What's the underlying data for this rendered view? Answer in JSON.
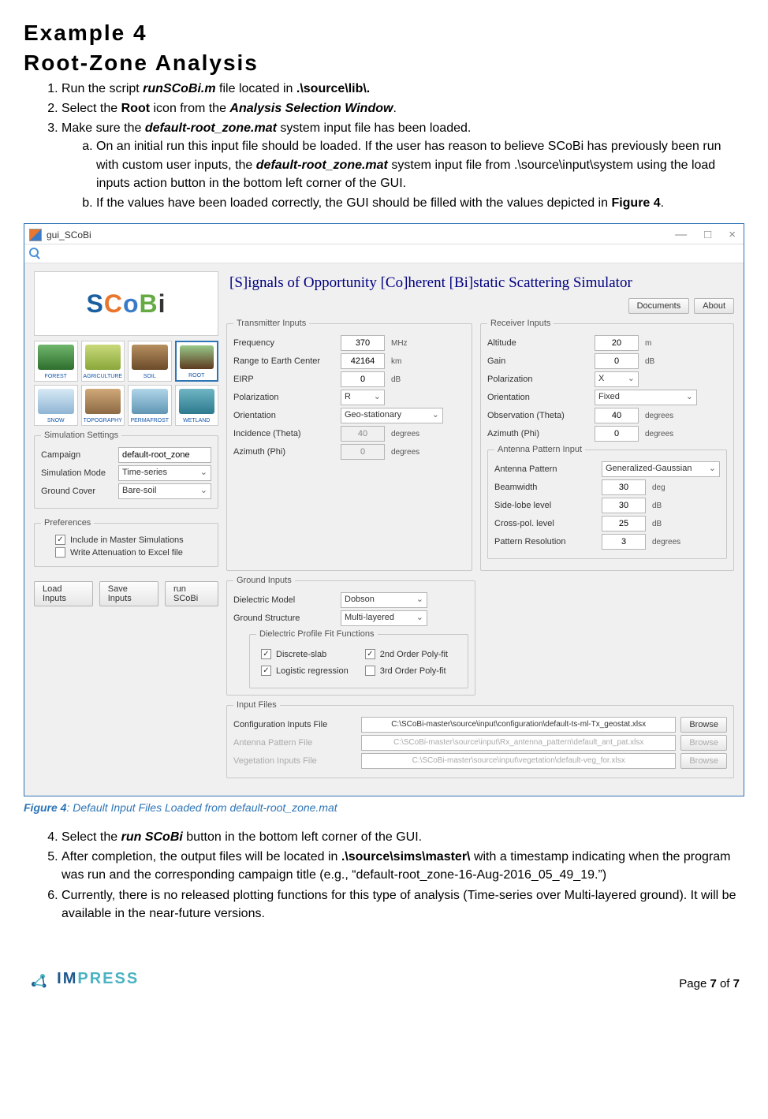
{
  "heading": {
    "l1": "Example 4",
    "l2": "Root-Zone Analysis"
  },
  "steps": {
    "s1": {
      "pre": "Run the script ",
      "em1": "runSCoBi.m",
      "mid": " file located in ",
      "em2": ".\\source\\lib\\."
    },
    "s2": {
      "pre": "Select the ",
      "b1": "Root",
      "mid": " icon from the ",
      "bi1": "Analysis Selection Window",
      "post": "."
    },
    "s3": {
      "pre": "Make sure the ",
      "bi1": "default-root_zone.mat",
      "post": " system input file has been loaded."
    },
    "s3a": {
      "pre": "On an initial run this input file should be loaded. If the user has reason to believe SCoBi has previously been run with custom user inputs, the ",
      "bi1": "default-root_zone.mat",
      "post": " system input file from .\\source\\input\\system using the load inputs action button in the bottom left corner of the GUI."
    },
    "s3b": {
      "pre": "If the values have been loaded correctly, the GUI should be filled with the values depicted in ",
      "b1": "Figure 4",
      "post": "."
    },
    "s4": {
      "pre": "Select the ",
      "bi1": "run SCoBi",
      "post": " button in the bottom left corner of the GUI."
    },
    "s5": {
      "pre": "After completion, the output files will be located in ",
      "b1": ".\\source\\sims\\master\\",
      "post": " with a timestamp indicating when the program was run and the corresponding campaign title (e.g., “default-root_zone-16-Aug-2016_05_49_19.”)"
    },
    "s6": "Currently, there is no released plotting functions for this type of analysis (Time-series over Multi-layered ground). It will be available in the near-future versions."
  },
  "figcap": {
    "b": "Figure 4",
    "rest": ": Default Input Files Loaded from default-root_zone.mat"
  },
  "gui": {
    "title": "gui_SCoBi",
    "appTitle": "[S]ignals of Opportunity [Co]herent [Bi]static Scattering Simulator",
    "topButtons": {
      "docs": "Documents",
      "about": "About"
    },
    "tiles": [
      "FOREST",
      "AGRICULTURE",
      "SOIL",
      "ROOT",
      "SNOW",
      "TOPOGRAPHY",
      "PERMAFROST",
      "WETLAND"
    ],
    "tileColors": [
      "linear-gradient(#6fb66b,#2e6e2e)",
      "linear-gradient(#c9d97a,#8aa83a)",
      "linear-gradient(#b79060,#6b4a2a)",
      "linear-gradient(#98c98a,#5e3a1e)",
      "linear-gradient(#d7e9f5,#8fb5d5)",
      "linear-gradient(#d0a878,#8c6a44)",
      "linear-gradient(#b0d5e8,#6096b4)",
      "linear-gradient(#6fb5c4,#2d7a8e)"
    ],
    "sim": {
      "legend": "Simulation Settings",
      "campaign": {
        "lbl": "Campaign",
        "val": "default-root_zone"
      },
      "mode": {
        "lbl": "Simulation Mode",
        "val": "Time-series"
      },
      "cover": {
        "lbl": "Ground Cover",
        "val": "Bare-soil"
      }
    },
    "prefs": {
      "legend": "Preferences",
      "c1": {
        "lbl": "Include in Master Simulations",
        "checked": true
      },
      "c2": {
        "lbl": "Write Attenuation to Excel file",
        "checked": false
      }
    },
    "bottomButtons": {
      "load": "Load Inputs",
      "save": "Save Inputs",
      "run": "run SCoBi"
    },
    "tx": {
      "legend": "Transmitter Inputs",
      "freq": {
        "lbl": "Frequency",
        "val": "370",
        "unit": "MHz"
      },
      "range": {
        "lbl": "Range to Earth Center",
        "val": "42164",
        "unit": "km"
      },
      "eirp": {
        "lbl": "EIRP",
        "val": "0",
        "unit": "dB"
      },
      "pol": {
        "lbl": "Polarization",
        "val": "R"
      },
      "orient": {
        "lbl": "Orientation",
        "val": "Geo-stationary"
      },
      "inc": {
        "lbl": "Incidence (Theta)",
        "val": "40",
        "unit": "degrees"
      },
      "az": {
        "lbl": "Azimuth (Phi)",
        "val": "0",
        "unit": "degrees"
      }
    },
    "rx": {
      "legend": "Receiver Inputs",
      "alt": {
        "lbl": "Altitude",
        "val": "20",
        "unit": "m"
      },
      "gain": {
        "lbl": "Gain",
        "val": "0",
        "unit": "dB"
      },
      "pol": {
        "lbl": "Polarization",
        "val": "X"
      },
      "orient": {
        "lbl": "Orientation",
        "val": "Fixed"
      },
      "obs": {
        "lbl": "Observation (Theta)",
        "val": "40",
        "unit": "degrees"
      },
      "az": {
        "lbl": "Azimuth (Phi)",
        "val": "0",
        "unit": "degrees"
      }
    },
    "ant": {
      "legend": "Antenna Pattern Input",
      "pat": {
        "lbl": "Antenna Pattern",
        "val": "Generalized-Gaussian"
      },
      "bw": {
        "lbl": "Beamwidth",
        "val": "30",
        "unit": "deg"
      },
      "sl": {
        "lbl": "Side-lobe level",
        "val": "30",
        "unit": "dB"
      },
      "xp": {
        "lbl": "Cross-pol. level",
        "val": "25",
        "unit": "dB"
      },
      "res": {
        "lbl": "Pattern Resolution",
        "val": "3",
        "unit": "degrees"
      }
    },
    "gnd": {
      "legend": "Ground Inputs",
      "diel": {
        "lbl": "Dielectric Model",
        "val": "Dobson"
      },
      "struct": {
        "lbl": "Ground Structure",
        "val": "Multi-layered"
      },
      "fitLegend": "Dielectric Profile Fit Functions",
      "chk": {
        "ds": {
          "lbl": "Discrete-slab",
          "checked": true
        },
        "p2": {
          "lbl": "2nd Order Poly-fit",
          "checked": true
        },
        "lr": {
          "lbl": "Logistic regression",
          "checked": true
        },
        "p3": {
          "lbl": "3rd Order Poly-fit",
          "checked": false
        }
      }
    },
    "files": {
      "legend": "Input Files",
      "cfg": {
        "lbl": "Configuration Inputs File",
        "val": "C:\\SCoBi-master\\source\\input\\configuration\\default-ts-ml-Tx_geostat.xlsx",
        "disabled": false
      },
      "ant": {
        "lbl": "Antenna Pattern File",
        "val": "C:\\SCoBi-master\\source\\input\\Rx_antenna_pattern\\default_ant_pat.xlsx",
        "disabled": true
      },
      "veg": {
        "lbl": "Vegetation Inputs File",
        "val": "C:\\SCoBi-master\\source\\input\\vegetation\\default-veg_for.xlsx",
        "disabled": true
      },
      "browse": "Browse"
    }
  },
  "footer": {
    "impress": "IMPRESS",
    "page": {
      "pre": "Page ",
      "n": "7",
      "of": " of ",
      "tot": "7"
    }
  }
}
